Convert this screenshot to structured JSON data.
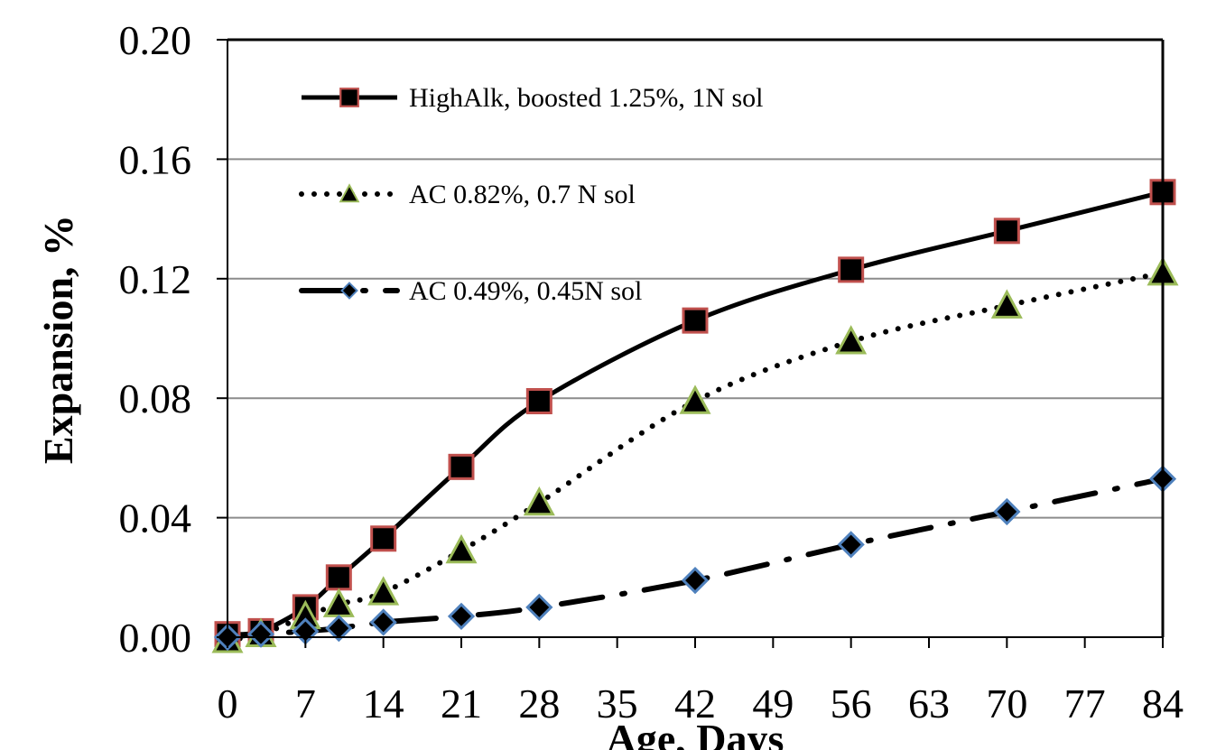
{
  "chart_data": {
    "type": "line",
    "title": "",
    "xlabel": "Age, Days",
    "ylabel": "Expansion, %",
    "xlim": [
      0,
      84
    ],
    "ylim": [
      0,
      0.2
    ],
    "xticks": [
      0,
      7,
      14,
      21,
      28,
      35,
      42,
      49,
      56,
      63,
      70,
      77,
      84
    ],
    "xtick_labels": [
      "0",
      "7",
      "14",
      "21",
      "28",
      "35",
      "42",
      "49",
      "56",
      "63",
      "70",
      "77",
      "84"
    ],
    "yticks": [
      0,
      0.04,
      0.08,
      0.12,
      0.16,
      0.2
    ],
    "ytick_labels": [
      "0.00",
      "0.04",
      "0.08",
      "0.12",
      "0.16",
      "0.20"
    ],
    "grid": "horizontal",
    "legend_position": "top-left",
    "series": [
      {
        "name": "HighAlk, boosted 1.25%, 1N sol",
        "marker": "square",
        "line_style": "solid",
        "marker_fill": "#000000",
        "marker_edge": "#c0504d",
        "x": [
          0,
          3,
          7,
          10,
          14,
          21,
          28,
          42,
          56,
          70,
          84
        ],
        "y": [
          0.001,
          0.002,
          0.01,
          0.02,
          0.033,
          0.057,
          0.079,
          0.106,
          0.123,
          0.136,
          0.149
        ]
      },
      {
        "name": "AC 0.82%, 0.7 N sol",
        "marker": "triangle",
        "line_style": "dotted",
        "marker_fill": "#000000",
        "marker_edge": "#9bbb59",
        "x": [
          0,
          3,
          7,
          10,
          14,
          21,
          28,
          42,
          56,
          70,
          84
        ],
        "y": [
          -0.001,
          0.001,
          0.007,
          0.011,
          0.015,
          0.029,
          0.045,
          0.079,
          0.099,
          0.111,
          0.122
        ]
      },
      {
        "name": "AC 0.49%, 0.45N sol",
        "marker": "diamond",
        "line_style": "dash-dot",
        "marker_fill": "#000000",
        "marker_edge": "#4f81bd",
        "x": [
          0,
          3,
          7,
          10,
          14,
          21,
          28,
          42,
          56,
          70,
          84
        ],
        "y": [
          0.0,
          0.001,
          0.002,
          0.003,
          0.005,
          0.007,
          0.01,
          0.019,
          0.031,
          0.042,
          0.053
        ]
      }
    ]
  }
}
